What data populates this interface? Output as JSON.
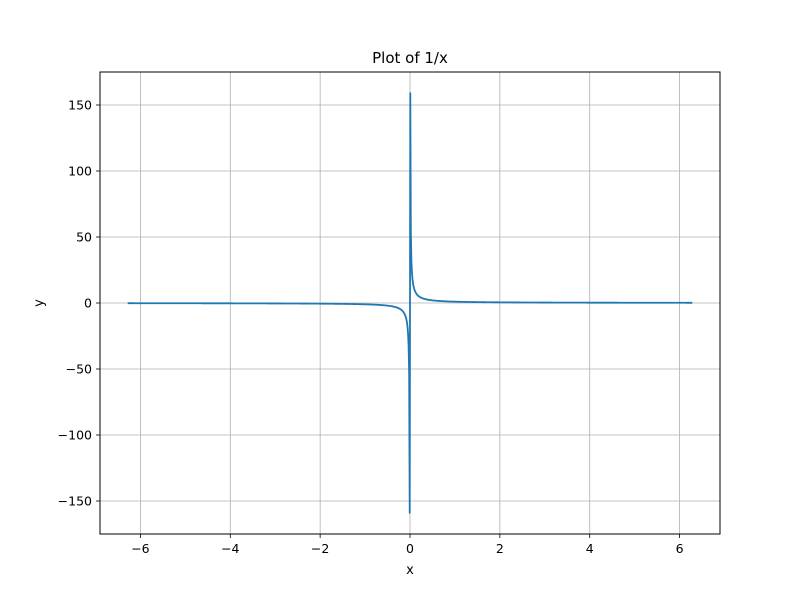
{
  "chart_data": {
    "type": "line",
    "title": "Plot of 1/x",
    "xlabel": "x",
    "ylabel": "y",
    "xlim": [
      -6.9,
      6.9
    ],
    "ylim": [
      -175,
      175
    ],
    "xticks": [
      -6,
      -4,
      -2,
      0,
      2,
      4,
      6
    ],
    "yticks": [
      -150,
      -100,
      -50,
      0,
      50,
      100,
      150
    ],
    "xtick_labels": [
      "−6",
      "−4",
      "−2",
      "0",
      "2",
      "4",
      "6"
    ],
    "ytick_labels": [
      "−150",
      "−100",
      "−50",
      "0",
      "50",
      "100",
      "150"
    ],
    "grid": true,
    "series": [
      {
        "color": "#1f77b4",
        "function": "1/x",
        "x_range": [
          -6.283,
          6.283
        ],
        "extremes": {
          "min": -159,
          "max": 159
        }
      }
    ]
  },
  "colors": {
    "line": "#1f77b4",
    "grid": "#b0b0b0",
    "axes": "#000000",
    "background": "#ffffff"
  }
}
